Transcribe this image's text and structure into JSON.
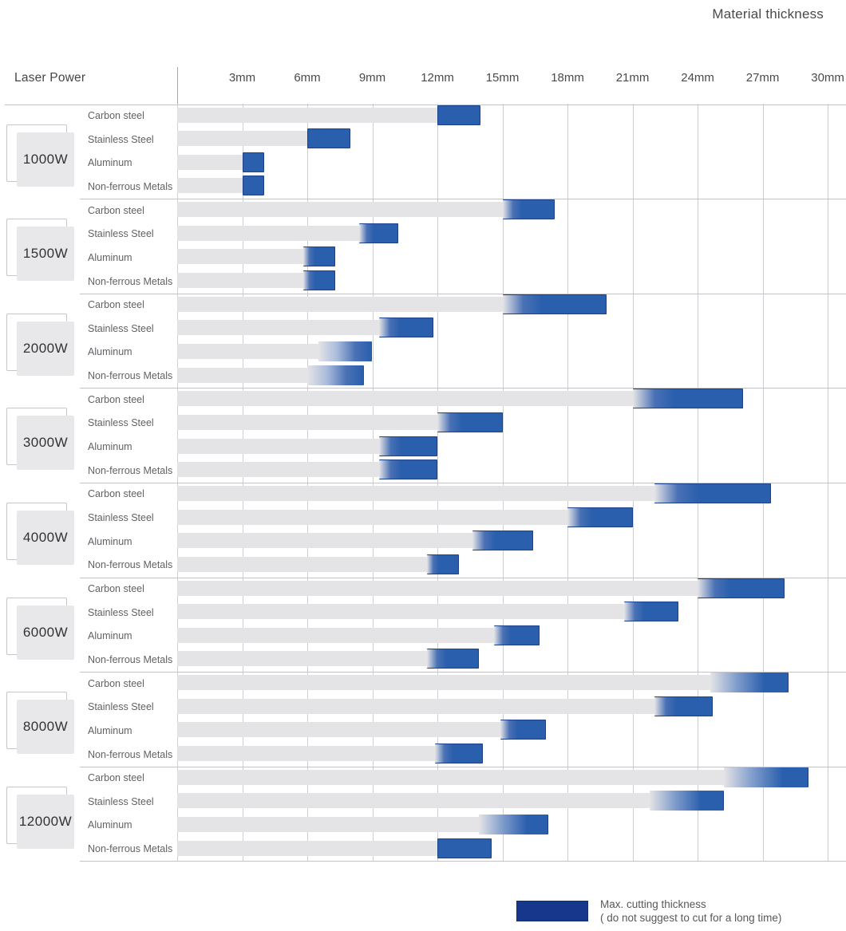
{
  "header": {
    "title": "Material thickness",
    "y_axis_label": "Laser Power"
  },
  "legend": {
    "label_line1": "Max. cutting thickness",
    "label_line2": "( do not suggest to cut for a long time)",
    "swatch_color": "#17378c"
  },
  "colors": {
    "bar_gray": "#e4e4e6",
    "bar_blue": "#2a5fad",
    "bar_blue_border": "#1c4187",
    "gridline": "#cdced2",
    "separator": "#c3c3c7",
    "text_gray": "#4a4a4c"
  },
  "chart_data": {
    "type": "bar",
    "orientation": "horizontal",
    "unit": "mm",
    "title": "Material thickness",
    "xlabel_ticks": [
      "3mm",
      "6mm",
      "9mm",
      "12mm",
      "15mm",
      "18mm",
      "21mm",
      "24mm",
      "27mm",
      "30mm"
    ],
    "x_tick_values_mm": [
      3,
      6,
      9,
      12,
      15,
      18,
      21,
      24,
      27,
      30
    ],
    "xlim_mm": [
      0,
      30
    ],
    "materials": [
      "Carbon steel",
      "Stainless Steel",
      "Aluminum",
      "Non-ferrous Metals"
    ],
    "legend_note": "blue block = max cutting thickness (do not suggest to cut for a long time); gray bar = regular cutting range",
    "groups": [
      {
        "power": "1000W",
        "rows": [
          {
            "material": "Carbon steel",
            "range_mm": [
              0,
              12
            ],
            "max_mm": [
              12,
              14
            ],
            "fade": "none"
          },
          {
            "material": "Stainless Steel",
            "range_mm": [
              0,
              6
            ],
            "max_mm": [
              6,
              8
            ],
            "fade": "none"
          },
          {
            "material": "Aluminum",
            "range_mm": [
              0,
              3
            ],
            "max_mm": [
              3,
              4
            ],
            "fade": "none"
          },
          {
            "material": "Non-ferrous Metals",
            "range_mm": [
              0,
              3
            ],
            "max_mm": [
              3,
              4
            ],
            "fade": "none"
          }
        ]
      },
      {
        "power": "1500W",
        "rows": [
          {
            "material": "Carbon steel",
            "range_mm": [
              0,
              15
            ],
            "max_mm": [
              15,
              17.4
            ],
            "fade": "soft"
          },
          {
            "material": "Stainless Steel",
            "range_mm": [
              0,
              8.4
            ],
            "max_mm": [
              8.4,
              10.2
            ],
            "fade": "soft"
          },
          {
            "material": "Aluminum",
            "range_mm": [
              0,
              5.8
            ],
            "max_mm": [
              5.8,
              7.3
            ],
            "fade": "soft"
          },
          {
            "material": "Non-ferrous Metals",
            "range_mm": [
              0,
              5.8
            ],
            "max_mm": [
              5.8,
              7.3
            ],
            "fade": "soft"
          }
        ]
      },
      {
        "power": "2000W",
        "rows": [
          {
            "material": "Carbon steel",
            "range_mm": [
              0,
              15
            ],
            "max_mm": [
              15,
              19.8
            ],
            "fade": "soft"
          },
          {
            "material": "Stainless Steel",
            "range_mm": [
              0,
              9.3
            ],
            "max_mm": [
              9.3,
              11.8
            ],
            "fade": "soft"
          },
          {
            "material": "Aluminum",
            "range_mm": [
              0,
              6.5
            ],
            "max_mm": [
              6.5,
              9
            ],
            "fade": "full"
          },
          {
            "material": "Non-ferrous Metals",
            "range_mm": [
              0,
              6
            ],
            "max_mm": [
              6,
              8.6
            ],
            "fade": "full"
          }
        ]
      },
      {
        "power": "3000W",
        "rows": [
          {
            "material": "Carbon steel",
            "range_mm": [
              0,
              21
            ],
            "max_mm": [
              21,
              26.1
            ],
            "fade": "soft"
          },
          {
            "material": "Stainless Steel",
            "range_mm": [
              0,
              12
            ],
            "max_mm": [
              12,
              15
            ],
            "fade": "soft"
          },
          {
            "material": "Aluminum",
            "range_mm": [
              0,
              9.3
            ],
            "max_mm": [
              9.3,
              12
            ],
            "fade": "soft"
          },
          {
            "material": "Non-ferrous Metals",
            "range_mm": [
              0,
              9.3
            ],
            "max_mm": [
              9.3,
              12
            ],
            "fade": "soft"
          }
        ]
      },
      {
        "power": "4000W",
        "rows": [
          {
            "material": "Carbon steel",
            "range_mm": [
              0,
              22
            ],
            "max_mm": [
              22,
              27.4
            ],
            "fade": "soft"
          },
          {
            "material": "Stainless Steel",
            "range_mm": [
              0,
              18
            ],
            "max_mm": [
              18,
              21
            ],
            "fade": "soft"
          },
          {
            "material": "Aluminum",
            "range_mm": [
              0,
              13.6
            ],
            "max_mm": [
              13.6,
              16.4
            ],
            "fade": "soft"
          },
          {
            "material": "Non-ferrous Metals",
            "range_mm": [
              0,
              11.5
            ],
            "max_mm": [
              11.5,
              13
            ],
            "fade": "soft"
          }
        ]
      },
      {
        "power": "6000W",
        "rows": [
          {
            "material": "Carbon steel",
            "range_mm": [
              0,
              24
            ],
            "max_mm": [
              24,
              28
            ],
            "fade": "soft"
          },
          {
            "material": "Stainless Steel",
            "range_mm": [
              0,
              20.6
            ],
            "max_mm": [
              20.6,
              23.1
            ],
            "fade": "soft"
          },
          {
            "material": "Aluminum",
            "range_mm": [
              0,
              14.6
            ],
            "max_mm": [
              14.6,
              16.7
            ],
            "fade": "soft"
          },
          {
            "material": "Non-ferrous Metals",
            "range_mm": [
              0,
              11.5
            ],
            "max_mm": [
              11.5,
              13.9
            ],
            "fade": "soft"
          }
        ]
      },
      {
        "power": "8000W",
        "rows": [
          {
            "material": "Carbon steel",
            "range_mm": [
              0,
              24.6
            ],
            "max_mm": [
              24.6,
              28.2
            ],
            "fade": "strong"
          },
          {
            "material": "Stainless Steel",
            "range_mm": [
              0,
              22
            ],
            "max_mm": [
              22,
              24.7
            ],
            "fade": "soft"
          },
          {
            "material": "Aluminum",
            "range_mm": [
              0,
              14.9
            ],
            "max_mm": [
              14.9,
              17
            ],
            "fade": "soft"
          },
          {
            "material": "Non-ferrous Metals",
            "range_mm": [
              0,
              11.9
            ],
            "max_mm": [
              11.9,
              14.1
            ],
            "fade": "soft"
          }
        ]
      },
      {
        "power": "12000W",
        "rows": [
          {
            "material": "Carbon steel",
            "range_mm": [
              0,
              25.2
            ],
            "max_mm": [
              25.2,
              29.1
            ],
            "fade": "strong"
          },
          {
            "material": "Stainless Steel",
            "range_mm": [
              0,
              21.8
            ],
            "max_mm": [
              21.8,
              25.2
            ],
            "fade": "strong"
          },
          {
            "material": "Aluminum",
            "range_mm": [
              0,
              13.9
            ],
            "max_mm": [
              13.9,
              17.1
            ],
            "fade": "strong"
          },
          {
            "material": "Non-ferrous Metals",
            "range_mm": [
              0,
              12
            ],
            "max_mm": [
              12,
              14.5
            ],
            "fade": "none"
          }
        ]
      }
    ]
  }
}
